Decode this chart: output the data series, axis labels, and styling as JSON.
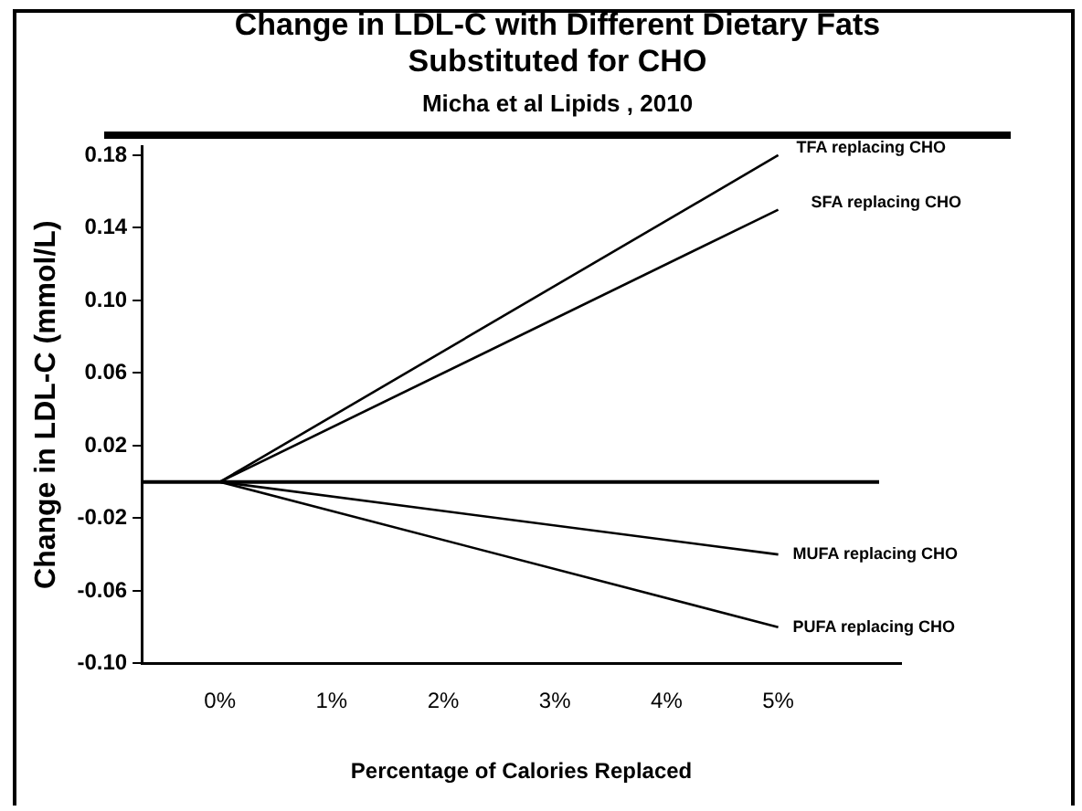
{
  "chart_data": {
    "type": "line",
    "title": "Change in LDL-C with Different Dietary Fats Substituted for CHO",
    "subtitle": "Micha et al  Lipids , 2010",
    "xlabel": "Percentage of Calories Replaced",
    "ylabel": "Change in LDL-C (mmol/L)",
    "x": [
      0,
      5
    ],
    "series": [
      {
        "name": "TFA replacing CHO",
        "color": "#000000",
        "values": [
          0,
          0.18
        ]
      },
      {
        "name": "SFA replacing CHO",
        "color": "#000000",
        "values": [
          0,
          0.15
        ]
      },
      {
        "name": "MUFA replacing CHO",
        "color": "#000000",
        "values": [
          0,
          -0.04
        ]
      },
      {
        "name": "PUFA replacing CHO",
        "color": "#000000",
        "values": [
          0,
          -0.08
        ]
      }
    ],
    "xlim": [
      -0.7,
      6.1
    ],
    "xticks": [
      {
        "value": 0,
        "label": "0%"
      },
      {
        "value": 1,
        "label": "1%"
      },
      {
        "value": 2,
        "label": "2%"
      },
      {
        "value": 3,
        "label": "3%"
      },
      {
        "value": 4,
        "label": "4%"
      },
      {
        "value": 5,
        "label": "5%"
      }
    ],
    "ylim": [
      -0.1,
      0.185
    ],
    "yticks": [
      {
        "value": -0.1,
        "label": "-0.10"
      },
      {
        "value": -0.06,
        "label": "-0.06"
      },
      {
        "value": -0.02,
        "label": "-0.02"
      },
      {
        "value": 0.02,
        "label": "0.02"
      },
      {
        "value": 0.06,
        "label": "0.06"
      },
      {
        "value": 0.1,
        "label": "0.10"
      },
      {
        "value": 0.14,
        "label": "0.14"
      },
      {
        "value": 0.18,
        "label": "0.18"
      }
    ],
    "ref_lines": [
      {
        "axis": "y",
        "value": 0,
        "label": null,
        "color": "#000000"
      }
    ],
    "marker": "none",
    "line_style": "solid"
  }
}
